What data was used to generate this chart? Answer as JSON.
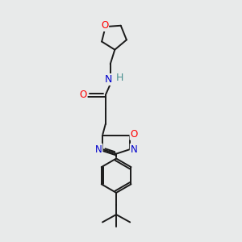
{
  "bg_color": "#e8eaea",
  "bond_color": "#1a1a1a",
  "atom_colors": {
    "O": "#ff0000",
    "N": "#0000cc",
    "H": "#4a9090",
    "C": "#1a1a1a"
  },
  "lw": 1.4,
  "fs": 8.5
}
